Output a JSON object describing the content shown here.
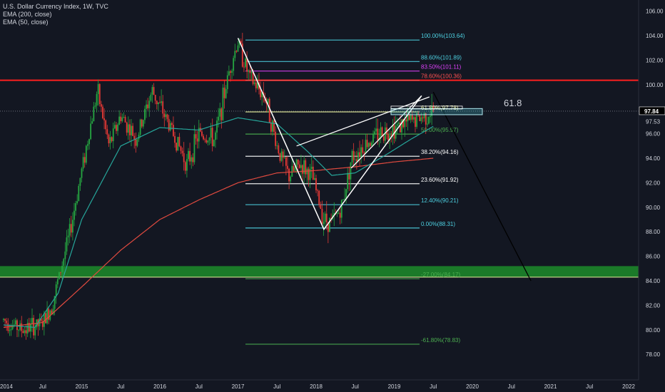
{
  "legend": {
    "symbol": "U.S. Dollar Currency Index, 1W, TVC",
    "ema200": "EMA (200, close)",
    "ema50": "EMA (50, close)"
  },
  "annotation_text": "61.8",
  "colors": {
    "background": "#131722",
    "up": "#26a641",
    "down": "#e53935",
    "ema200": "#e04a3f",
    "ema50": "#26a69a",
    "resistance": "#ff1f1f",
    "support_zone": "#1b7f2a",
    "price_line": "#787b86"
  },
  "chart_data": {
    "type": "candlestick",
    "x_tick_labels": [
      "2014",
      "Jul",
      "2015",
      "Jul",
      "2016",
      "Jul",
      "2017",
      "Jul",
      "2018",
      "Jul",
      "2019",
      "Jul",
      "2020",
      "Jul",
      "2021",
      "Jul",
      "2022"
    ],
    "y_tick_labels": [
      "78.00",
      "80.00",
      "82.00",
      "84.00",
      "86.00",
      "88.00",
      "90.00",
      "92.00",
      "94.00",
      "96.00",
      "98.00",
      "100.00",
      "102.00",
      "104.00",
      "106.00"
    ],
    "ylim": [
      77.0,
      107.0
    ],
    "xlim": [
      2014.0,
      2022.15
    ],
    "last_price": "97.84",
    "ema_value": "97.53",
    "price_path": [
      [
        2014.0,
        80.8
      ],
      [
        2014.25,
        80.0
      ],
      [
        2014.5,
        80.5
      ],
      [
        2014.62,
        82.0
      ],
      [
        2014.85,
        88.0
      ],
      [
        2015.0,
        93.0
      ],
      [
        2015.2,
        99.5
      ],
      [
        2015.35,
        95.0
      ],
      [
        2015.5,
        97.5
      ],
      [
        2015.7,
        95.5
      ],
      [
        2015.9,
        99.5
      ],
      [
        2016.1,
        97.0
      ],
      [
        2016.35,
        93.5
      ],
      [
        2016.5,
        96.0
      ],
      [
        2016.7,
        95.5
      ],
      [
        2016.9,
        101.5
      ],
      [
        2017.0,
        103.5
      ],
      [
        2017.15,
        100.5
      ],
      [
        2017.35,
        99.0
      ],
      [
        2017.5,
        95.0
      ],
      [
        2017.65,
        92.5
      ],
      [
        2017.8,
        93.5
      ],
      [
        2017.95,
        92.5
      ],
      [
        2018.1,
        89.0
      ],
      [
        2018.2,
        88.8
      ],
      [
        2018.33,
        90.0
      ],
      [
        2018.45,
        94.0
      ],
      [
        2018.6,
        95.0
      ],
      [
        2018.8,
        96.0
      ],
      [
        2019.0,
        96.5
      ],
      [
        2019.2,
        97.0
      ],
      [
        2019.35,
        97.3
      ],
      [
        2019.5,
        97.8
      ]
    ],
    "ema200": [
      [
        2014.0,
        80.2
      ],
      [
        2014.5,
        80.6
      ],
      [
        2015.0,
        83.5
      ],
      [
        2015.5,
        86.5
      ],
      [
        2016.0,
        89.0
      ],
      [
        2016.5,
        90.6
      ],
      [
        2017.0,
        92.0
      ],
      [
        2017.5,
        92.8
      ],
      [
        2018.0,
        93.0
      ],
      [
        2018.5,
        93.3
      ],
      [
        2019.0,
        93.7
      ],
      [
        2019.5,
        94.0
      ]
    ],
    "ema50": [
      [
        2014.0,
        80.4
      ],
      [
        2014.4,
        80.2
      ],
      [
        2014.7,
        83.0
      ],
      [
        2015.0,
        89.0
      ],
      [
        2015.5,
        95.0
      ],
      [
        2016.0,
        96.5
      ],
      [
        2016.5,
        96.3
      ],
      [
        2017.0,
        97.3
      ],
      [
        2017.5,
        96.8
      ],
      [
        2017.9,
        94.5
      ],
      [
        2018.2,
        92.6
      ],
      [
        2018.5,
        92.8
      ],
      [
        2018.9,
        94.3
      ],
      [
        2019.2,
        95.5
      ],
      [
        2019.5,
        96.6
      ]
    ],
    "fibonacci": [
      {
        "label": "100.00%(103.64)",
        "price": 103.64,
        "color": "#4dd0e1"
      },
      {
        "label": "88.60%(101.89)",
        "price": 101.89,
        "color": "#4dd0e1"
      },
      {
        "label": "83.50%(101.11)",
        "price": 101.11,
        "color": "#e040fb"
      },
      {
        "label": "78.60%(100.36)",
        "price": 100.36,
        "color": "#ff5252"
      },
      {
        "label": "61.80%(97.78)",
        "price": 97.78,
        "color": "#e6ee9c"
      },
      {
        "label": "50.00%(95.97)",
        "price": 95.97,
        "color": "#4caf50"
      },
      {
        "label": "38.20%(94.16)",
        "price": 94.16,
        "color": "#ffffff"
      },
      {
        "label": "23.60%(91.92)",
        "price": 91.92,
        "color": "#ffffff"
      },
      {
        "label": "12.40%(90.21)",
        "price": 90.21,
        "color": "#4dd0e1"
      },
      {
        "label": "0.00%(88.31)",
        "price": 88.31,
        "color": "#4dd0e1"
      },
      {
        "label": "-27.00%(84.17)",
        "price": 84.17,
        "color": "#4caf50"
      },
      {
        "label": "-61.80%(78.83)",
        "price": 78.83,
        "color": "#4caf50"
      }
    ],
    "resistance_level": 100.36,
    "support_zone": [
      84.3,
      85.2
    ],
    "pattern_points": {
      "v_top": [
        2017.0,
        103.8
      ],
      "v_bottom": [
        2018.1,
        88.2
      ],
      "v_right": [
        2019.35,
        99.1
      ],
      "wedge_upper_start": [
        2017.75,
        95.0
      ],
      "wedge_upper_end": [
        2019.45,
        99.0
      ],
      "projection_start": [
        2019.5,
        99.4
      ],
      "projection_end": [
        2020.75,
        84.0
      ]
    }
  }
}
